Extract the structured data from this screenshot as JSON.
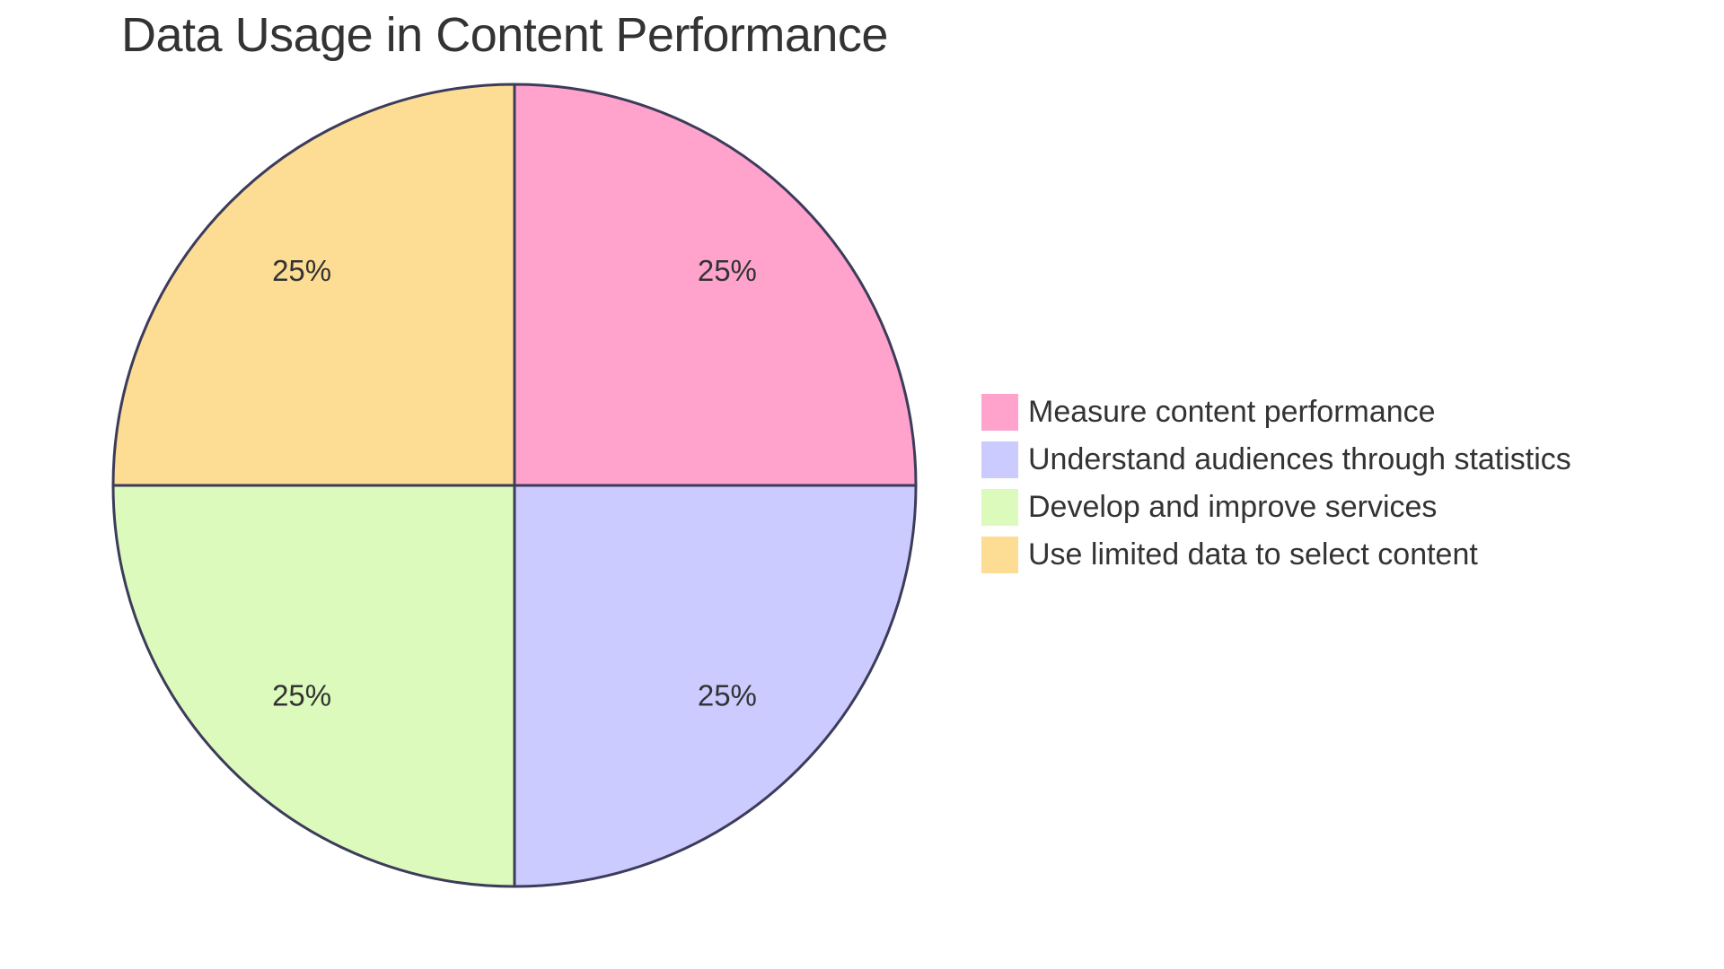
{
  "chart_data": {
    "type": "pie",
    "title": "Data Usage in Content Performance",
    "slices": [
      {
        "label": "Measure content performance",
        "value": 25,
        "display": "25%",
        "color": "#ffa3cd"
      },
      {
        "label": "Understand audiences through statistics",
        "value": 25,
        "display": "25%",
        "color": "#cbcbff"
      },
      {
        "label": "Develop and improve services",
        "value": 25,
        "display": "25%",
        "color": "#dbfabb"
      },
      {
        "label": "Use limited data to select content",
        "value": 25,
        "display": "25%",
        "color": "#fddd94"
      }
    ],
    "legend_position": "right",
    "stroke_color": "#3c3c5a"
  }
}
